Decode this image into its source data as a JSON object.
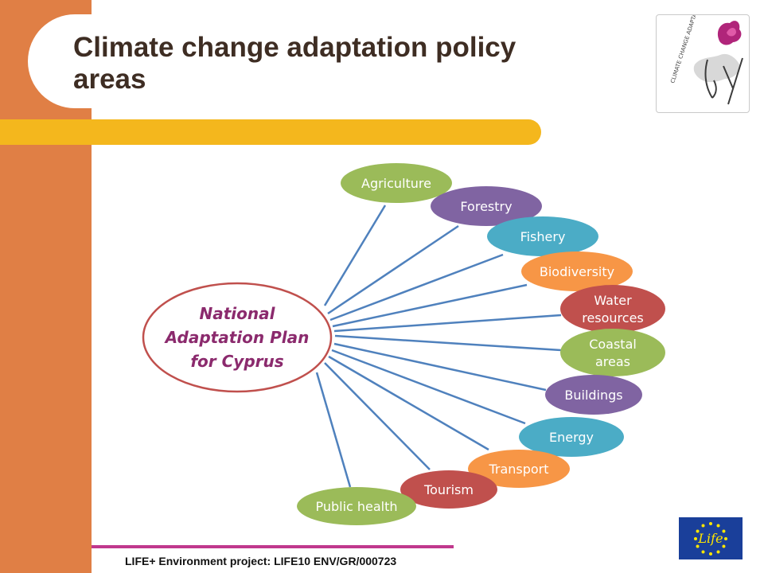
{
  "slide": {
    "title": "Climate change adaptation policy areas",
    "footer": "LIFE+ Environment project: LIFE10 ENV/GR/000723"
  },
  "diagram": {
    "center": {
      "lines": [
        "National",
        "Adaptation Plan",
        "for Cyprus"
      ]
    },
    "nodes": [
      {
        "lines": [
          "Agriculture"
        ],
        "color": "#9bbb59"
      },
      {
        "lines": [
          "Forestry"
        ],
        "color": "#8064a2"
      },
      {
        "lines": [
          "Fishery"
        ],
        "color": "#4bacc6"
      },
      {
        "lines": [
          "Biodiversity"
        ],
        "color": "#f79646"
      },
      {
        "lines": [
          "Water",
          "resources"
        ],
        "color": "#c0504d"
      },
      {
        "lines": [
          "Coastal",
          "areas"
        ],
        "color": "#9bbb59"
      },
      {
        "lines": [
          "Buildings"
        ],
        "color": "#8064a2"
      },
      {
        "lines": [
          "Energy"
        ],
        "color": "#4bacc6"
      },
      {
        "lines": [
          "Transport"
        ],
        "color": "#f79646"
      },
      {
        "lines": [
          "Tourism"
        ],
        "color": "#c0504d"
      },
      {
        "lines": [
          "Public health"
        ],
        "color": "#9bbb59"
      }
    ]
  },
  "logos": {
    "cy_logo_text": "CLIMATE CHANGE ADAPTATION",
    "cy_logo_mark": "Cy",
    "life_logo_text": "Life"
  },
  "colors": {
    "left_bar": "#e07f45",
    "yellow_bar": "#f4b71d",
    "title": "#3e2d23",
    "connector": "#4f81bd",
    "center_stroke": "#c0504d",
    "center_text": "#8b2a6d",
    "footer_line": "#c0388d"
  }
}
